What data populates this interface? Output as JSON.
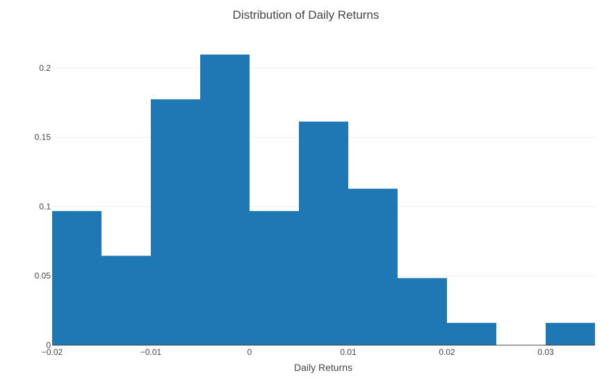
{
  "chart_data": {
    "type": "bar",
    "title": "Distribution of Daily Returns",
    "xlabel": "Daily Returns",
    "ylabel": "",
    "bar_color": "#1f77b4",
    "grid": true,
    "xlim": [
      -0.02,
      0.035
    ],
    "ylim": [
      0,
      0.225
    ],
    "bin_width": 0.005,
    "bins": [
      {
        "start": -0.02,
        "end": -0.015,
        "value": 0.0968
      },
      {
        "start": -0.015,
        "end": -0.01,
        "value": 0.0645
      },
      {
        "start": -0.01,
        "end": -0.005,
        "value": 0.1774
      },
      {
        "start": -0.005,
        "end": 0.0,
        "value": 0.2097
      },
      {
        "start": 0.0,
        "end": 0.005,
        "value": 0.0968
      },
      {
        "start": 0.005,
        "end": 0.01,
        "value": 0.1613
      },
      {
        "start": 0.01,
        "end": 0.015,
        "value": 0.1129
      },
      {
        "start": 0.015,
        "end": 0.02,
        "value": 0.0484
      },
      {
        "start": 0.02,
        "end": 0.025,
        "value": 0.0161
      },
      {
        "start": 0.025,
        "end": 0.03,
        "value": 0.0
      },
      {
        "start": 0.03,
        "end": 0.035,
        "value": 0.0161
      }
    ],
    "x_ticks": [
      {
        "value": -0.02,
        "label": "−0.02"
      },
      {
        "value": -0.01,
        "label": "−0.01"
      },
      {
        "value": 0,
        "label": "0"
      },
      {
        "value": 0.01,
        "label": "0.01"
      },
      {
        "value": 0.02,
        "label": "0.02"
      },
      {
        "value": 0.03,
        "label": "0.03"
      }
    ],
    "y_ticks": [
      {
        "value": 0,
        "label": "0"
      },
      {
        "value": 0.05,
        "label": "0.05"
      },
      {
        "value": 0.1,
        "label": "0.1"
      },
      {
        "value": 0.15,
        "label": "0.15"
      },
      {
        "value": 0.2,
        "label": "0.2"
      }
    ]
  }
}
